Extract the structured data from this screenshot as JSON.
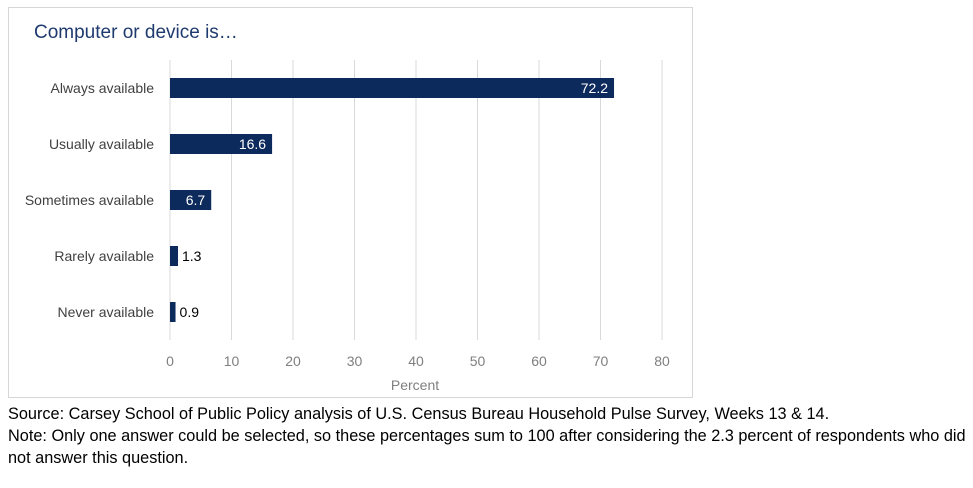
{
  "chart_data": {
    "type": "bar",
    "orientation": "horizontal",
    "title": "Computer or device is…",
    "xlabel": "Percent",
    "ylabel": "",
    "categories": [
      "Always available",
      "Usually available",
      "Sometimes available",
      "Rarely available",
      "Never available"
    ],
    "values": [
      72.2,
      16.6,
      6.7,
      1.3,
      0.9
    ],
    "data_labels": [
      "72.2",
      "16.6",
      "6.7",
      "1.3",
      "0.9"
    ],
    "xlim": [
      0,
      80
    ],
    "xticks": [
      0,
      10,
      20,
      30,
      40,
      50,
      60,
      70,
      80
    ],
    "grid": true,
    "legend": "none",
    "bar_color": "#0d2a5c"
  },
  "notes": {
    "source": "Source: Carsey School of Public Policy analysis of U.S. Census Bureau Household Pulse Survey, Weeks 13 & 14.",
    "note": "Note: Only one answer could be selected, so these percentages sum to 100 after considering the 2.3 percent of respondents who did not answer this question."
  }
}
